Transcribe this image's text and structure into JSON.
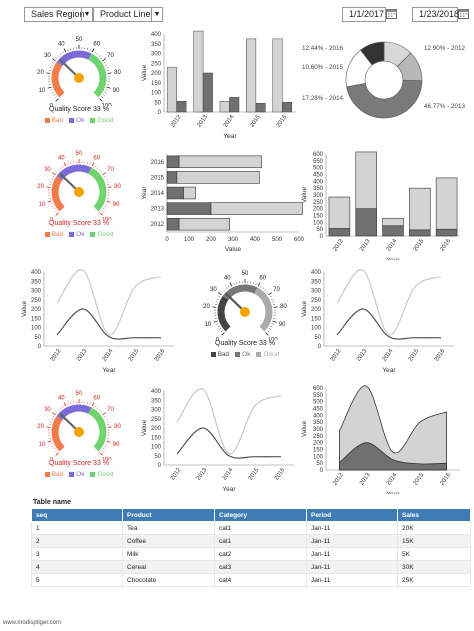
{
  "filters": {
    "region_label": "Sales Region",
    "product_label": "Product Line",
    "start_date": "1/1/2017",
    "end_date": "1/23/2018"
  },
  "gauges": [
    {
      "title": "Quality Score 33 %",
      "value": 33,
      "title_color": "#222",
      "tick_color": "#222",
      "bands": [
        "#f47c4c",
        "#7a6bd8",
        "#6fd46f"
      ],
      "needle": "#666",
      "hub": "#f0a500",
      "legend": [
        "Bad",
        "Ok",
        "Good"
      ],
      "legend_colors": [
        "#f47c4c",
        "#7a6bd8",
        "#6fd46f"
      ]
    },
    {
      "title": "Quality Score 33 %",
      "value": 33,
      "title_color": "#e02020",
      "tick_color": "#e02020",
      "bands": [
        "#f47c4c",
        "#7a6bd8",
        "#6fd46f"
      ],
      "needle": "#666",
      "hub": "#f0a500",
      "legend": [
        "Bad",
        "Ok",
        "Good"
      ],
      "legend_colors": [
        "#f47c4c",
        "#7a6bd8",
        "#6fd46f"
      ]
    },
    {
      "title": "Quality Score 33 %",
      "value": 33,
      "title_color": "#222",
      "tick_color": "#222",
      "bands": [
        "#444444",
        "#777777",
        "#aaaaaa"
      ],
      "needle": "#555",
      "hub": "#f0a500",
      "legend": [
        "Bad",
        "Ok",
        "Good"
      ],
      "legend_colors": [
        "#444444",
        "#777777",
        "#aaaaaa"
      ]
    },
    {
      "title": "Quality Score 33 %",
      "value": 33,
      "title_color": "#e02020",
      "tick_color": "#e02020",
      "bands": [
        "#f47c4c",
        "#7a6bd8",
        "#6fd46f"
      ],
      "needle": "#666",
      "hub": "#f0a500",
      "legend": [
        "Bad",
        "Ok",
        "Good"
      ],
      "legend_colors": [
        "#f47c4c",
        "#7a6bd8",
        "#6fd46f"
      ]
    }
  ],
  "gauge_ticks": [
    "0",
    "10",
    "20",
    "30",
    "40",
    "50",
    "60",
    "70",
    "80",
    "90",
    "100"
  ],
  "chart_data": [
    {
      "type": "bar",
      "xlabel": "Year",
      "ylabel": "Value",
      "ylim": [
        0,
        400
      ],
      "categories": [
        "2012",
        "2013",
        "2014",
        "2015",
        "2016"
      ],
      "series": [
        {
          "values": [
            230,
            415,
            55,
            375,
            375
          ]
        },
        {
          "values": [
            55,
            200,
            75,
            45,
            50
          ]
        }
      ]
    },
    {
      "type": "pie",
      "labels": [
        "12.44% - 2016",
        "12.90% - 2012",
        "10.60% - 2015",
        "17.28% - 2014",
        "46.77% - 2013"
      ],
      "values": [
        12.44,
        12.9,
        10.6,
        17.28,
        46.77
      ]
    },
    {
      "type": "bar",
      "orientation": "horizontal",
      "xlabel": "Value",
      "ylabel": "Year",
      "xlim": [
        0,
        600
      ],
      "categories": [
        "2016",
        "2015",
        "2014",
        "2013",
        "2012"
      ],
      "series": [
        {
          "values": [
            55,
            45,
            75,
            200,
            55
          ]
        },
        {
          "values": [
            375,
            375,
            55,
            415,
            230
          ]
        }
      ]
    },
    {
      "type": "bar",
      "stacked": true,
      "xlabel": "Year",
      "ylabel": "Value",
      "ylim": [
        0,
        600
      ],
      "categories": [
        "2012",
        "2013",
        "2014",
        "2015",
        "2016"
      ],
      "series": [
        {
          "values": [
            55,
            200,
            75,
            45,
            50
          ]
        },
        {
          "values": [
            230,
            415,
            55,
            305,
            375
          ]
        }
      ]
    },
    {
      "type": "line",
      "xlabel": "Year",
      "ylabel": "Value",
      "ylim": [
        0,
        400
      ],
      "categories": [
        "2012",
        "2013",
        "2014",
        "2015",
        "2016"
      ],
      "series": [
        {
          "values": [
            230,
            410,
            60,
            320,
            375
          ]
        },
        {
          "values": [
            60,
            200,
            50,
            45,
            45
          ]
        }
      ]
    },
    {
      "type": "line",
      "xlabel": "Year",
      "ylabel": "Value",
      "ylim": [
        0,
        400
      ],
      "categories": [
        "2012",
        "2013",
        "2014",
        "2015",
        "2016"
      ],
      "series": [
        {
          "values": [
            230,
            410,
            60,
            320,
            375
          ]
        },
        {
          "values": [
            60,
            200,
            50,
            45,
            45
          ]
        }
      ]
    },
    {
      "type": "line",
      "xlabel": "Year",
      "ylabel": "Value",
      "ylim": [
        0,
        400
      ],
      "categories": [
        "2012",
        "2013",
        "2014",
        "2015",
        "2016"
      ],
      "series": [
        {
          "values": [
            230,
            410,
            60,
            320,
            375
          ]
        },
        {
          "values": [
            60,
            200,
            50,
            45,
            45
          ]
        }
      ]
    },
    {
      "type": "area",
      "stacked": true,
      "xlabel": "Year",
      "ylabel": "Value",
      "ylim": [
        0,
        600
      ],
      "categories": [
        "2012",
        "2013",
        "2014",
        "2015",
        "2016"
      ],
      "series": [
        {
          "values": [
            55,
            200,
            75,
            45,
            50
          ]
        },
        {
          "values": [
            230,
            415,
            55,
            305,
            375
          ]
        }
      ]
    }
  ],
  "table": {
    "title": "Table name",
    "headers": [
      "seq",
      "Product",
      "Category",
      "Period",
      "Sales"
    ],
    "rows": [
      [
        "1",
        "Tea",
        "cat1",
        "Jan-11",
        "20K"
      ],
      [
        "2",
        "Coffee",
        "cat1",
        "Jan-11",
        "15K"
      ],
      [
        "3",
        "Milk",
        "cat2",
        "Jan-11",
        "5K"
      ],
      [
        "4",
        "Cereal",
        "cat3",
        "Jan-11",
        "30K"
      ],
      [
        "5",
        "Chocolate",
        "cat4",
        "Jan-11",
        "25K"
      ]
    ]
  },
  "footer": "www.modisptiger.com",
  "colors": {
    "dark": "#707070",
    "light": "#d3d3d3",
    "pie": [
      "#d8d8d8",
      "#b8b8b8",
      "#333333",
      "#ffffff",
      "#7a7a7a"
    ]
  }
}
